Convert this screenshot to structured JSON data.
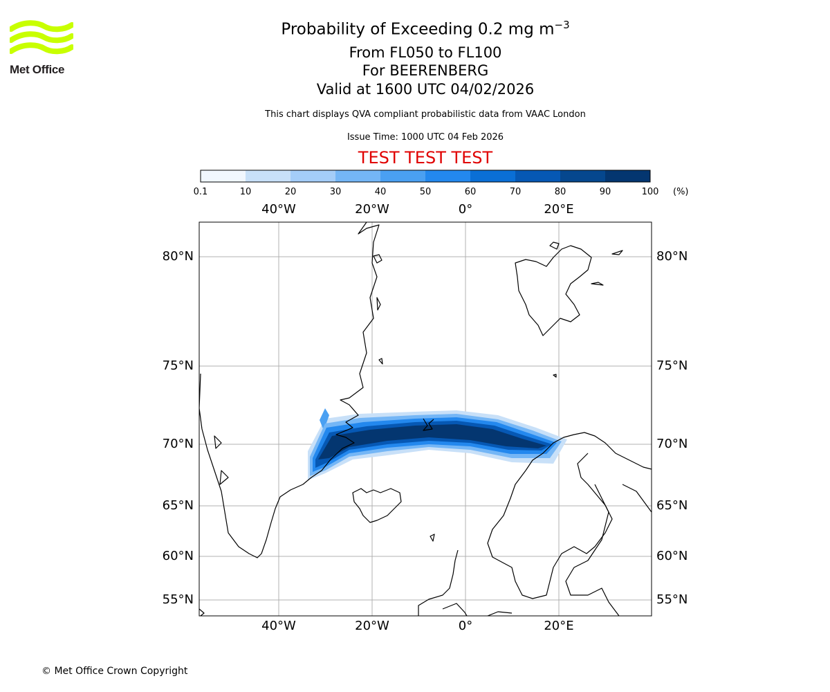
{
  "logo": {
    "text": "Met Office",
    "color": "#c8ff00"
  },
  "title": {
    "main": "Probability of Exceeding 0.2 mg m",
    "main_exp": "−3",
    "line2": "From FL050 to FL100",
    "line3": "For BEERENBERG",
    "line4": "Valid at 1600 UTC 04/02/2026"
  },
  "subtitle": "This chart displays QVA compliant probabilistic data from VAAC London",
  "issue_time": "Issue Time: 1000 UTC 04 Feb 2026",
  "test_banner": {
    "text": "TEST TEST TEST",
    "color": "#e00000"
  },
  "colorbar": {
    "ticks": [
      "0.1",
      "10",
      "20",
      "30",
      "40",
      "50",
      "60",
      "70",
      "80",
      "90",
      "100"
    ],
    "unit": "(%)",
    "colors": [
      "#f1f7fe",
      "#c8e0f8",
      "#a4cdf8",
      "#74b6f6",
      "#4aa0f2",
      "#2388ee",
      "#0a6fd6",
      "#0658b4",
      "#05478e",
      "#043670"
    ]
  },
  "map": {
    "lon_labels": [
      "40°W",
      "20°W",
      "0°",
      "20°E"
    ],
    "lat_labels": [
      "80°N",
      "75°N",
      "70°N",
      "65°N",
      "60°N",
      "55°N"
    ],
    "gridline_color": "#b0b0b0",
    "coastline_color": "#000000",
    "volcano": "BEERENBERG"
  },
  "copyright": "© Met Office Crown Copyright"
}
